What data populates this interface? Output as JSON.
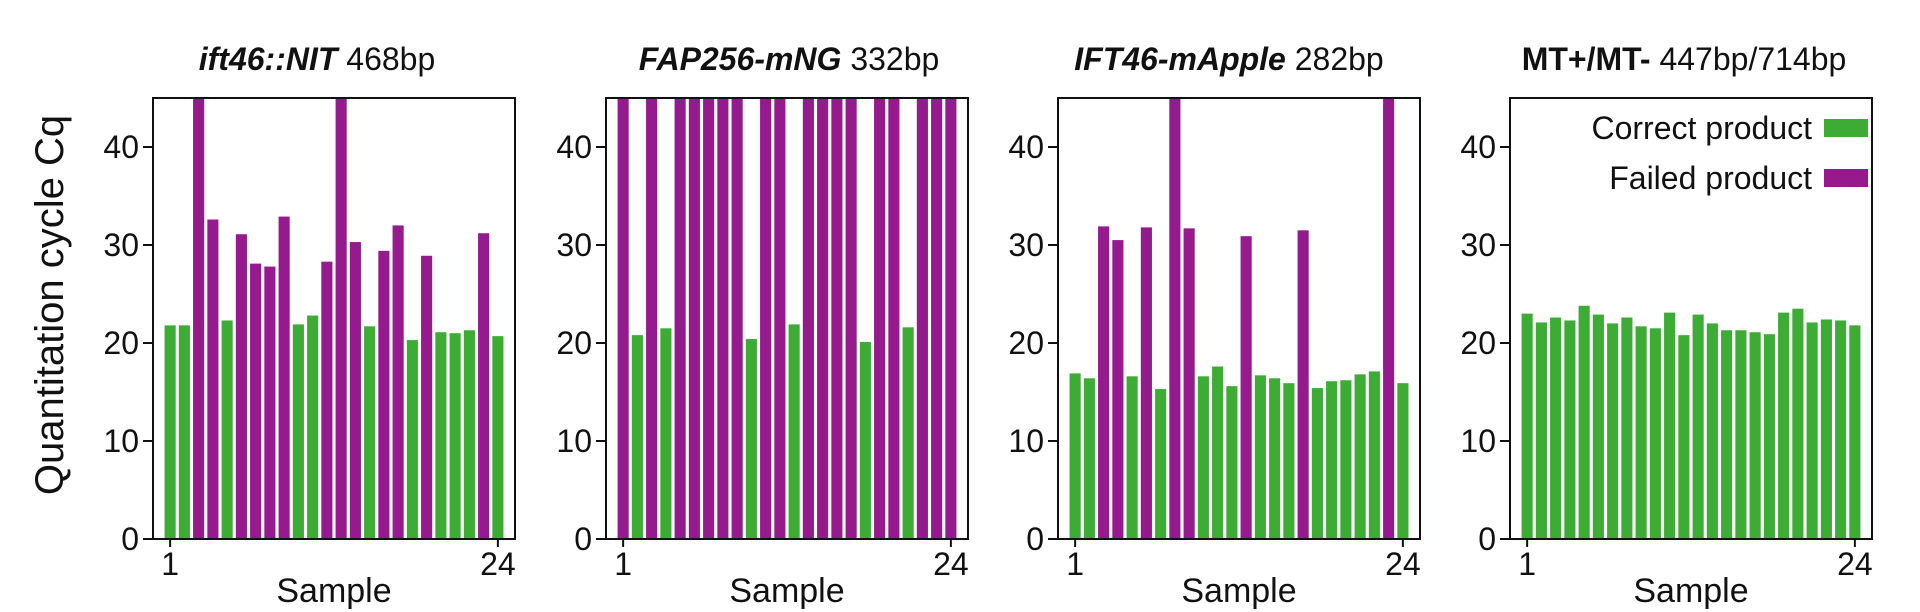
{
  "figure": {
    "ylabel": "Quantitation cycle Cq",
    "colors": {
      "correct": "#3cac34",
      "failed": "#951a8d"
    }
  },
  "chart_data": [
    {
      "type": "bar",
      "title_bold": "ift46::NIT",
      "title_bold_italic": true,
      "title_rest": " 468bp",
      "xlabel": "Sample",
      "ylim": [
        0,
        45
      ],
      "yticks": [
        0,
        10,
        20,
        30,
        40
      ],
      "xtick_labels": [
        "1",
        "24"
      ],
      "values": [
        21.8,
        21.8,
        45,
        32.6,
        22.3,
        31.1,
        28.1,
        27.8,
        32.9,
        21.9,
        22.8,
        28.3,
        45,
        30.3,
        21.7,
        29.4,
        32.0,
        20.3,
        28.9,
        21.1,
        21.0,
        21.3,
        31.2,
        20.7
      ],
      "status": [
        "correct",
        "correct",
        "failed",
        "failed",
        "correct",
        "failed",
        "failed",
        "failed",
        "failed",
        "correct",
        "correct",
        "failed",
        "failed",
        "failed",
        "correct",
        "failed",
        "failed",
        "correct",
        "failed",
        "correct",
        "correct",
        "correct",
        "failed",
        "correct"
      ]
    },
    {
      "type": "bar",
      "title_bold": "FAP256-mNG",
      "title_bold_italic": true,
      "title_rest": " 332bp",
      "xlabel": "Sample",
      "ylim": [
        0,
        45
      ],
      "yticks": [
        0,
        10,
        20,
        30,
        40
      ],
      "xtick_labels": [
        "1",
        "24"
      ],
      "values": [
        45,
        20.8,
        45,
        21.5,
        45,
        45,
        45,
        45,
        45,
        20.4,
        45,
        45,
        21.9,
        45,
        45,
        45,
        45,
        20.1,
        45,
        45,
        21.6,
        45,
        45,
        45
      ],
      "status": [
        "failed",
        "correct",
        "failed",
        "correct",
        "failed",
        "failed",
        "failed",
        "failed",
        "failed",
        "correct",
        "failed",
        "failed",
        "correct",
        "failed",
        "failed",
        "failed",
        "failed",
        "correct",
        "failed",
        "failed",
        "correct",
        "failed",
        "failed",
        "failed"
      ]
    },
    {
      "type": "bar",
      "title_bold": "IFT46-mApple",
      "title_bold_italic": true,
      "title_rest": " 282bp",
      "xlabel": "Sample",
      "ylim": [
        0,
        45
      ],
      "yticks": [
        0,
        10,
        20,
        30,
        40
      ],
      "xtick_labels": [
        "1",
        "24"
      ],
      "values": [
        16.9,
        16.4,
        31.9,
        30.5,
        16.6,
        31.8,
        15.3,
        45,
        31.7,
        16.6,
        17.6,
        15.6,
        30.9,
        16.7,
        16.4,
        15.9,
        31.5,
        15.4,
        16.1,
        16.2,
        16.8,
        17.1,
        45,
        15.9
      ],
      "status": [
        "correct",
        "correct",
        "failed",
        "failed",
        "correct",
        "failed",
        "correct",
        "failed",
        "failed",
        "correct",
        "correct",
        "correct",
        "failed",
        "correct",
        "correct",
        "correct",
        "failed",
        "correct",
        "correct",
        "correct",
        "correct",
        "correct",
        "failed",
        "correct"
      ]
    },
    {
      "type": "bar",
      "title_bold": "MT+/MT-",
      "title_bold_italic": false,
      "title_rest": " 447bp/714bp",
      "xlabel": "Sample",
      "ylim": [
        0,
        45
      ],
      "yticks": [
        0,
        10,
        20,
        30,
        40
      ],
      "xtick_labels": [
        "1",
        "24"
      ],
      "legend": {
        "placement": "top-right",
        "entries": [
          {
            "label": "Correct product",
            "key": "correct"
          },
          {
            "label": "Failed product",
            "key": "failed"
          }
        ]
      },
      "values": [
        23.0,
        22.1,
        22.6,
        22.3,
        23.8,
        22.9,
        22.0,
        22.6,
        21.7,
        21.5,
        23.1,
        20.8,
        22.9,
        22.0,
        21.3,
        21.3,
        21.1,
        20.9,
        23.1,
        23.5,
        22.1,
        22.4,
        22.3,
        21.8
      ],
      "status": [
        "correct",
        "correct",
        "correct",
        "correct",
        "correct",
        "correct",
        "correct",
        "correct",
        "correct",
        "correct",
        "correct",
        "correct",
        "correct",
        "correct",
        "correct",
        "correct",
        "correct",
        "correct",
        "correct",
        "correct",
        "correct",
        "correct",
        "correct",
        "correct"
      ]
    }
  ]
}
